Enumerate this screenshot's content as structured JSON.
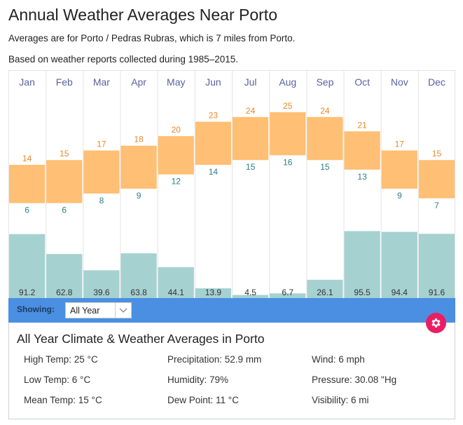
{
  "header": {
    "title": "Annual Weather Averages Near Porto",
    "subtitle1": "Averages are for Porto / Pedras Rubras, which is 7 miles from Porto.",
    "subtitle2": "Based on weather reports collected during 1985–2015."
  },
  "chart_data": {
    "type": "bar",
    "title": "Annual Weather Averages Near Porto",
    "categories": [
      "Jan",
      "Feb",
      "Mar",
      "Apr",
      "May",
      "Jun",
      "Jul",
      "Aug",
      "Sep",
      "Oct",
      "Nov",
      "Dec"
    ],
    "series": [
      {
        "name": "High Temp (°C)",
        "values": [
          14,
          15,
          17,
          18,
          20,
          23,
          24,
          25,
          24,
          21,
          17,
          15
        ]
      },
      {
        "name": "Low Temp (°C)",
        "values": [
          6,
          6,
          8,
          9,
          12,
          14,
          15,
          16,
          15,
          13,
          9,
          7
        ]
      },
      {
        "name": "Precipitation (mm)",
        "values": [
          91.2,
          62.8,
          39.6,
          63.8,
          44.1,
          13.9,
          4.5,
          6.7,
          26.1,
          95.5,
          94.4,
          91.6
        ]
      }
    ],
    "xlabel": "",
    "ylabel": "",
    "grid": true,
    "colors": {
      "temp_range": "#ffbf74",
      "high_label": "#e8892b",
      "low_label": "#2a7f8a",
      "precip": "#a6d1d1",
      "precip_label": "#333333",
      "month_label": "#5961a0"
    }
  },
  "controls": {
    "showing_label": "Showing:",
    "period_select": {
      "value": "All Year"
    },
    "settings_color": "#e91e63",
    "bar_color": "#4a8fe2"
  },
  "summary": {
    "title": "All Year Climate & Weather Averages in Porto",
    "stats": [
      [
        "High Temp: 25 °C",
        "Precipitation: 52.9 mm",
        "Wind: 6 mph"
      ],
      [
        "Low Temp: 6 °C",
        "Humidity: 79%",
        "Pressure: 30.08 \"Hg"
      ],
      [
        "Mean Temp: 15 °C",
        "Dew Point: 11 °C",
        "Visibility: 6 mi"
      ]
    ]
  }
}
